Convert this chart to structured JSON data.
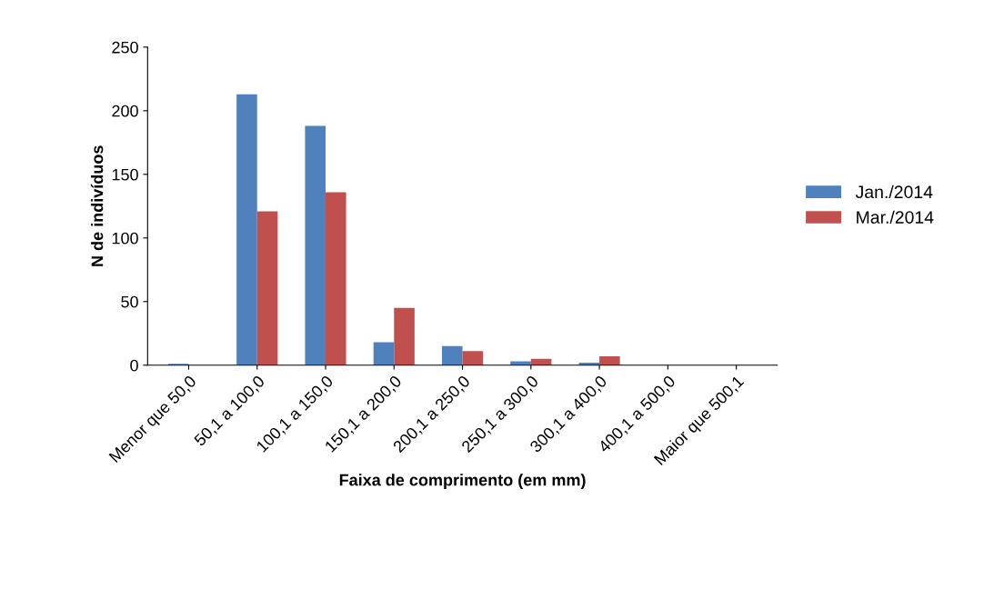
{
  "chart_data": {
    "type": "bar",
    "xlabel": "Faixa de comprimento (em mm)",
    "ylabel": "N de indivíduos",
    "categories": [
      "Menor que 50,0",
      "50,1 a 100,0",
      "100,1 a 150,0",
      "150,1 a 200,0",
      "200,1 a 250,0",
      "250,1 a 300,0",
      "300,1 a 400,0",
      "400,1 a 500,0",
      "Maior que 500,1"
    ],
    "series": [
      {
        "name": "Jan./2014",
        "color": "#4f81bd",
        "values": [
          1,
          213,
          188,
          18,
          15,
          3,
          2,
          0,
          0
        ]
      },
      {
        "name": "Mar./2014",
        "color": "#c0504d",
        "values": [
          0,
          121,
          136,
          45,
          11,
          5,
          7,
          0,
          0
        ]
      }
    ],
    "ylim": [
      0,
      250
    ],
    "yticks": [
      0,
      50,
      100,
      150,
      200,
      250
    ],
    "legend": "right",
    "grid": false
  }
}
